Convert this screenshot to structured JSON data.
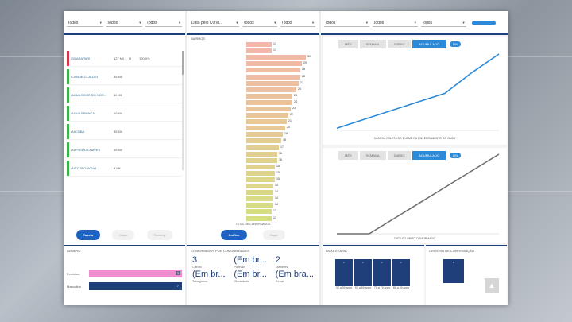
{
  "filters_col1": [
    {
      "label": "",
      "value": "Todos"
    },
    {
      "label": "",
      "value": "Todos"
    },
    {
      "label": "",
      "value": "Todos"
    }
  ],
  "filters_col2": [
    {
      "label": "",
      "value": "Data pelo COVI..."
    },
    {
      "label": "",
      "value": "Todos"
    },
    {
      "label": "",
      "value": "Todos"
    }
  ],
  "filters_col3": [
    {
      "label": "",
      "value": "Todos"
    },
    {
      "label": "",
      "value": "Todos"
    },
    {
      "label": "",
      "value": "Todos"
    }
  ],
  "toggle_label": "",
  "table": {
    "headers": [
      "",
      "",
      "",
      "",
      ""
    ],
    "rows": [
      {
        "name": "GUARAPARI",
        "v": "127 Mil",
        "s": "5",
        "p": "100,0%"
      },
      {
        "name": "CONDE CL ALDEI",
        "v": "35 Mil",
        "s": "",
        "p": ""
      },
      {
        "name": "AGUA DOCE DO NOR...",
        "v": "11 Mil",
        "s": "",
        "p": ""
      },
      {
        "name": "AGUA BRANCA",
        "v": "10 Mil",
        "s": "",
        "p": ""
      },
      {
        "name": "ALCOBA",
        "v": "35 Mil",
        "s": "",
        "p": ""
      },
      {
        "name": "ALFREDO CHAVES",
        "v": "15 Mil",
        "s": "",
        "p": ""
      },
      {
        "name": "ALTO RIO NOVO",
        "v": "8 Mil",
        "s": "",
        "p": ""
      }
    ],
    "hint": ""
  },
  "col1_buttons": [
    "Tabela",
    "Mapa",
    "Ranking"
  ],
  "genero": {
    "title": "GENERO",
    "items": [
      {
        "label": "Feminino",
        "value": "3",
        "color": "#f08ccf"
      },
      {
        "label": "Masculino",
        "value": "7",
        "color": "#1f3f7a"
      }
    ]
  },
  "bairros": {
    "title": "BAIRROS",
    "axis_caption": "TOTAL DE CONFIRMADOS"
  },
  "col2_buttons": [
    "Gráfico",
    "Mapa"
  ],
  "comorb": {
    "title": "CONFIRMADOS POR COMORBIDADES",
    "items": [
      {
        "big": "3",
        "label": "Cardio"
      },
      {
        "big": "(Em br...",
        "label": "Pulmão"
      },
      {
        "big": "2",
        "label": "Diabetes"
      },
      {
        "big": "(Em br...",
        "label": "Tabagismo"
      },
      {
        "big": "(Em br...",
        "label": "Obesidade"
      },
      {
        "big": "(Em bra...",
        "label": "Renal"
      }
    ]
  },
  "chart_tabs": [
    "MÊS",
    "SEMANA",
    "DIÁRIO",
    "ACUMULADO"
  ],
  "chart_toggle": "LIN",
  "chart1_caption": "DATA DA COLETA DO EXAME OU ENCERRAMENTO DO CASO",
  "chart2_caption": "DATA DO ÓBITO CONFIRMADO",
  "chart2_ylabel": "",
  "faixa": {
    "title": "FAIXA ETÁRIA",
    "labels": [
      "30 a 39 anos",
      "50 a 59 anos",
      "70 a 79 anos",
      "80 a 89 anos"
    ]
  },
  "criterio_title": "CRITÉRIO DE CONFIRMAÇÃO",
  "chart_data": [
    {
      "type": "bar",
      "orientation": "horizontal",
      "title": "BAIRROS",
      "xlabel": "TOTAL DE CONFIRMADOS",
      "values": [
        13,
        13,
        31,
        29,
        28,
        28,
        27,
        26,
        24,
        24,
        23,
        22,
        21,
        20,
        19,
        18,
        17,
        16,
        16,
        15,
        15,
        15,
        14,
        14,
        14,
        14,
        13,
        13
      ],
      "xlim": [
        0,
        35
      ]
    },
    {
      "type": "line",
      "caption": "DATA DA COLETA DO EXAME OU ENCERRAMENTO DO CASO",
      "mode": "ACUMULADO",
      "x": [
        "",
        "",
        "",
        "",
        "",
        "",
        ""
      ],
      "y": [
        4,
        20,
        36,
        52,
        68,
        106,
        140
      ]
    },
    {
      "type": "line",
      "caption": "DATA DO ÓBITO CONFIRMADO",
      "mode": "ACUMULADO",
      "x": [
        "",
        "",
        "",
        "",
        "",
        ""
      ],
      "y": [
        0,
        0,
        20,
        40,
        60,
        80
      ]
    }
  ],
  "colors": {
    "primary": "#1f3f7a",
    "accent": "#2d8ad8",
    "line1": "#2d8ad8",
    "line2": "#6d6d6d"
  }
}
